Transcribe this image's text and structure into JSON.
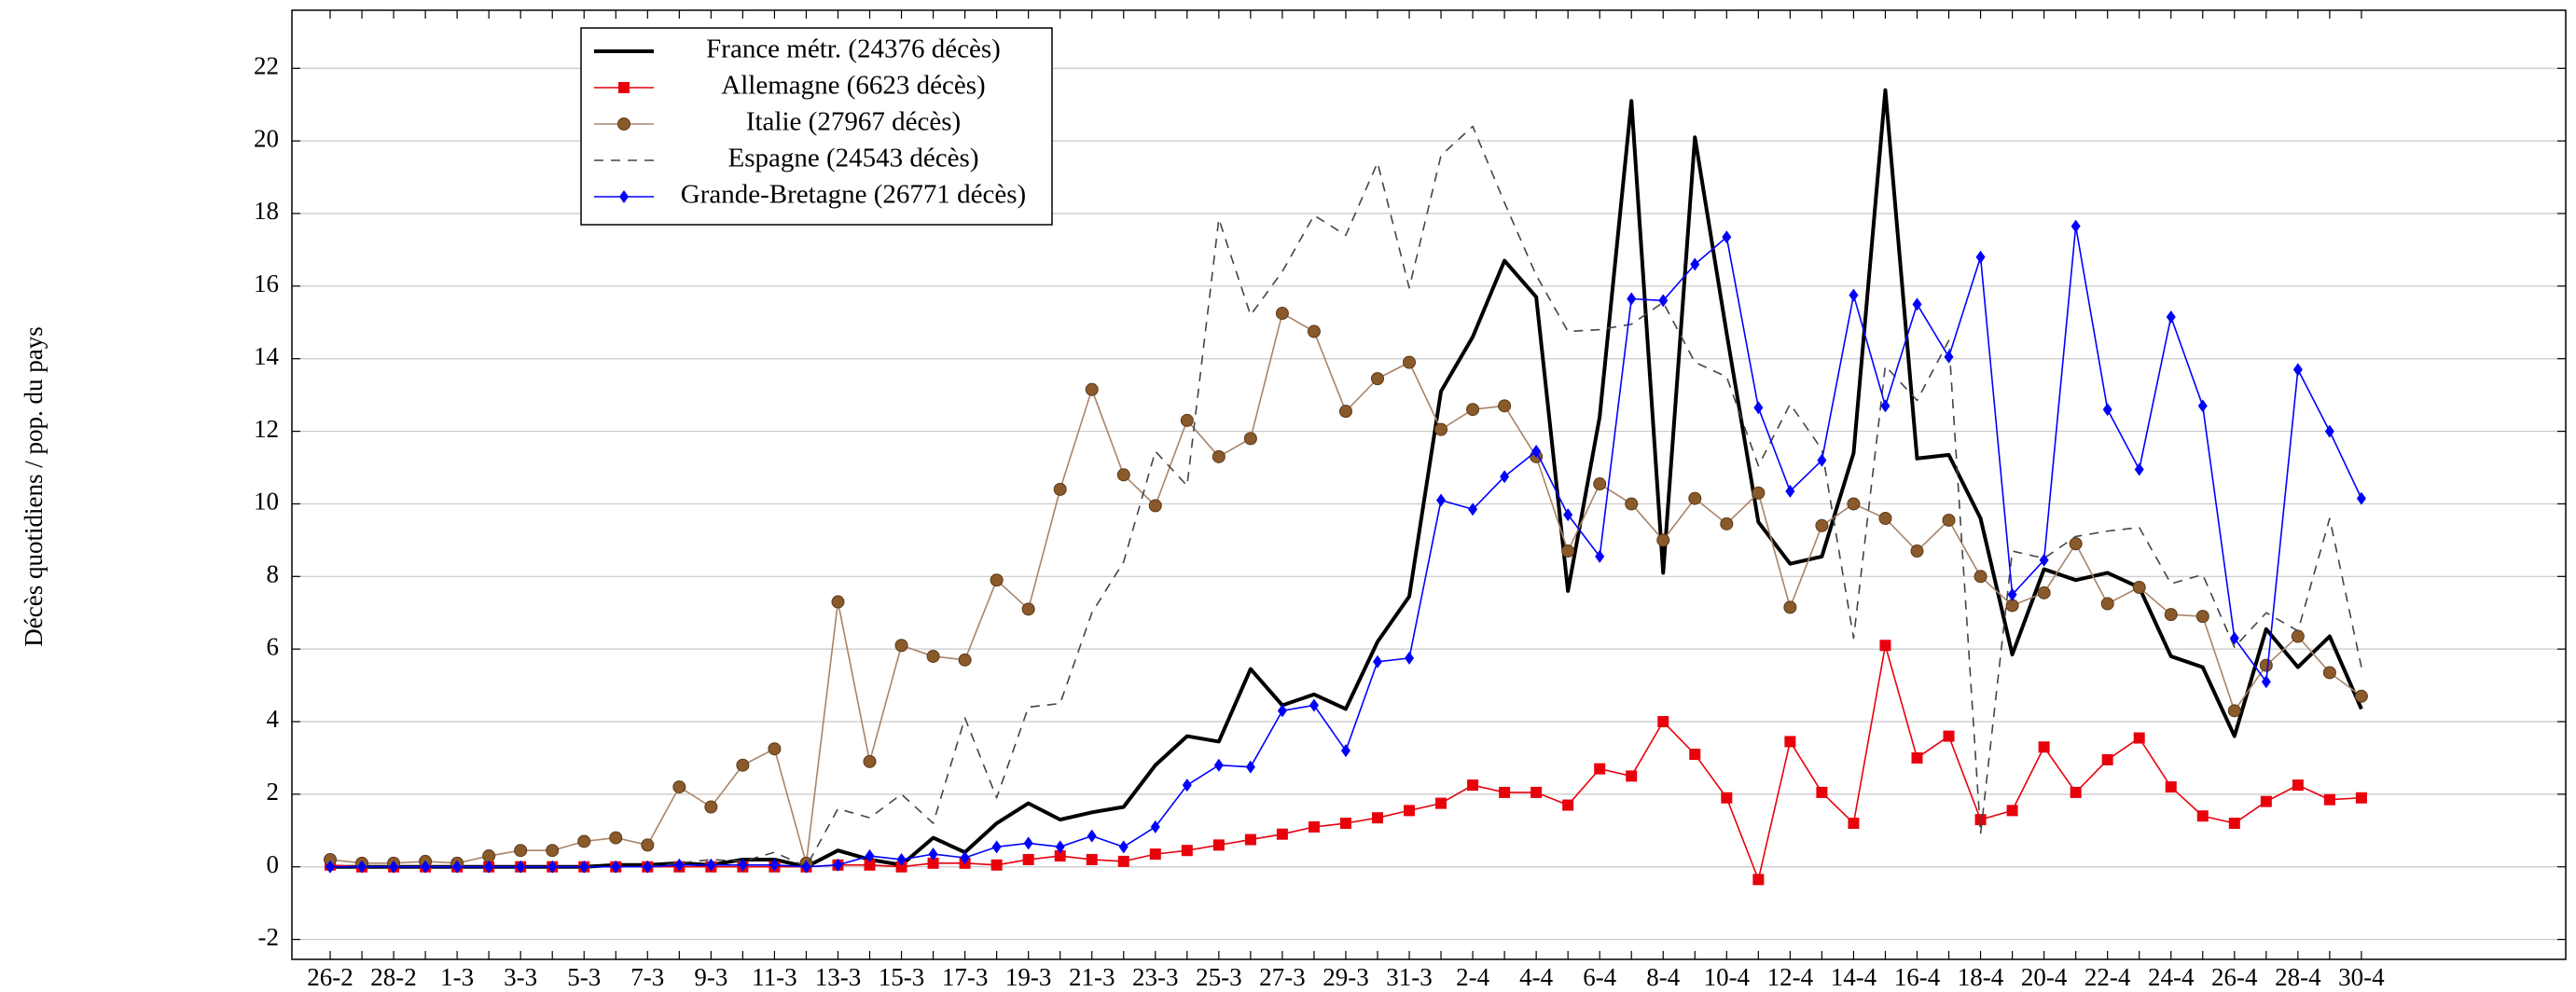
{
  "chart_data": {
    "type": "line",
    "ylabel": "Décès quotidiens / pop. du pays",
    "ylim": [
      -2.55,
      23.6
    ],
    "yticks": [
      -2,
      0,
      2,
      4,
      6,
      8,
      10,
      12,
      14,
      16,
      18,
      20,
      22
    ],
    "grid": true,
    "legend": "upper left",
    "categories": [
      "26-2",
      null,
      "28-2",
      null,
      "1-3",
      null,
      "3-3",
      null,
      "5-3",
      null,
      "7-3",
      null,
      "9-3",
      null,
      "11-3",
      null,
      "13-3",
      null,
      "15-3",
      null,
      "17-3",
      null,
      "19-3",
      null,
      "21-3",
      null,
      "23-3",
      null,
      "25-3",
      null,
      "27-3",
      null,
      "29-3",
      null,
      "31-3",
      null,
      "2-4",
      null,
      "4-4",
      null,
      "6-4",
      null,
      "8-4",
      null,
      "10-4",
      null,
      "12-4",
      null,
      "14-4",
      null,
      "16-4",
      null,
      "18-4",
      null,
      "20-4",
      null,
      "22-4",
      null,
      "24-4",
      null,
      "26-4",
      null,
      "28-4",
      null,
      "30-4"
    ],
    "series": [
      {
        "name": "France métr. (24376 décès)",
        "color": "#000000",
        "marker": "none",
        "dash": "solid",
        "values": [
          0,
          0,
          0,
          0,
          0,
          0,
          0,
          0,
          0,
          0.05,
          0.05,
          0.1,
          0.05,
          0.2,
          0.2,
          0,
          0.45,
          0.2,
          0.05,
          0.8,
          0.4,
          1.2,
          1.75,
          1.3,
          1.5,
          1.65,
          2.8,
          3.6,
          3.45,
          5.45,
          4.45,
          4.75,
          4.35,
          6.2,
          7.45,
          13.1,
          14.6,
          16.7,
          15.7,
          7.6,
          12.4,
          21.1,
          8.1,
          20.1,
          14.7,
          9.5,
          8.35,
          8.55,
          11.4,
          21.4,
          11.25,
          11.35,
          9.6,
          5.85,
          8.2,
          7.9,
          8.1,
          7.7,
          5.8,
          5.5,
          3.6,
          6.55,
          5.5,
          6.35,
          4.35
        ]
      },
      {
        "name": "Allemagne (6623 décès)",
        "color": "#e8000b",
        "marker": "square",
        "dash": "solid",
        "values": [
          0.05,
          0,
          0,
          0,
          0,
          0,
          0,
          0,
          0,
          0,
          0,
          0,
          0,
          0,
          0,
          0,
          0.05,
          0.05,
          0,
          0.1,
          0.1,
          0.05,
          0.2,
          0.3,
          0.2,
          0.15,
          0.35,
          0.45,
          0.6,
          0.75,
          0.9,
          1.1,
          1.2,
          1.35,
          1.55,
          1.75,
          2.25,
          2.05,
          2.05,
          1.7,
          2.7,
          2.5,
          4.0,
          3.1,
          1.9,
          -0.35,
          3.45,
          2.05,
          1.2,
          6.1,
          3.0,
          3.6,
          1.3,
          1.55,
          3.3,
          2.05,
          2.95,
          3.55,
          2.2,
          1.4,
          1.2,
          1.8,
          2.25,
          1.85,
          1.9
        ]
      },
      {
        "name": "Italie (27967 décès)",
        "color": "#8b5a2b",
        "marker": "circle",
        "dash": "solid",
        "values": [
          0.2,
          0.1,
          0.1,
          0.15,
          0.1,
          0.3,
          0.45,
          0.45,
          0.7,
          0.8,
          0.6,
          2.2,
          1.65,
          2.8,
          3.25,
          0.1,
          7.3,
          2.9,
          6.1,
          5.8,
          5.7,
          7.9,
          7.1,
          10.4,
          13.15,
          10.8,
          9.95,
          12.3,
          11.3,
          11.8,
          15.25,
          14.75,
          12.55,
          13.45,
          13.9,
          12.05,
          12.6,
          12.7,
          11.3,
          8.7,
          10.55,
          10.0,
          9.0,
          10.15,
          9.45,
          10.3,
          7.15,
          9.4,
          10.0,
          9.6,
          8.7,
          9.55,
          8.0,
          7.2,
          7.55,
          8.9,
          7.25,
          7.7,
          6.95,
          6.9,
          4.3,
          5.55,
          6.35,
          5.35,
          4.7
        ]
      },
      {
        "name": "Espagne (24543 décès)",
        "color": "#444444",
        "marker": "none",
        "dash": "dashed",
        "values": [
          0,
          0,
          0,
          0,
          0,
          0,
          0,
          0,
          0,
          0,
          0,
          0.1,
          0.2,
          0.15,
          0.4,
          0,
          1.6,
          1.35,
          2.0,
          1.2,
          4.1,
          1.9,
          4.4,
          4.5,
          7.0,
          8.4,
          11.45,
          10.5,
          17.85,
          15.2,
          16.4,
          17.95,
          17.4,
          19.4,
          15.95,
          19.6,
          20.4,
          18.3,
          16.3,
          14.75,
          14.8,
          14.95,
          15.55,
          13.9,
          13.5,
          11.05,
          12.75,
          11.5,
          6.3,
          13.8,
          12.85,
          14.5,
          0.9,
          8.7,
          8.5,
          9.1,
          9.25,
          9.35,
          7.8,
          8.05,
          6.05,
          7.0,
          6.5,
          9.6,
          5.5
        ]
      },
      {
        "name": "Grande-Bretagne (26771 décès)",
        "color": "#0000ff",
        "marker": "diamond",
        "dash": "solid",
        "values": [
          0,
          0,
          0,
          0,
          0,
          0,
          0,
          0,
          0,
          0,
          0,
          0.05,
          0.05,
          0.05,
          0.05,
          0,
          0.05,
          0.3,
          0.2,
          0.35,
          0.25,
          0.55,
          0.65,
          0.55,
          0.85,
          0.55,
          1.1,
          2.25,
          2.8,
          2.75,
          4.3,
          4.45,
          3.2,
          5.65,
          5.75,
          10.1,
          9.85,
          10.75,
          11.45,
          9.7,
          8.55,
          15.65,
          15.6,
          16.6,
          17.35,
          12.65,
          10.35,
          11.2,
          15.75,
          12.7,
          15.5,
          14.05,
          16.8,
          7.5,
          8.45,
          17.65,
          12.6,
          10.95,
          15.15,
          12.7,
          6.3,
          5.1,
          13.7,
          12.0,
          10.15
        ]
      }
    ]
  }
}
